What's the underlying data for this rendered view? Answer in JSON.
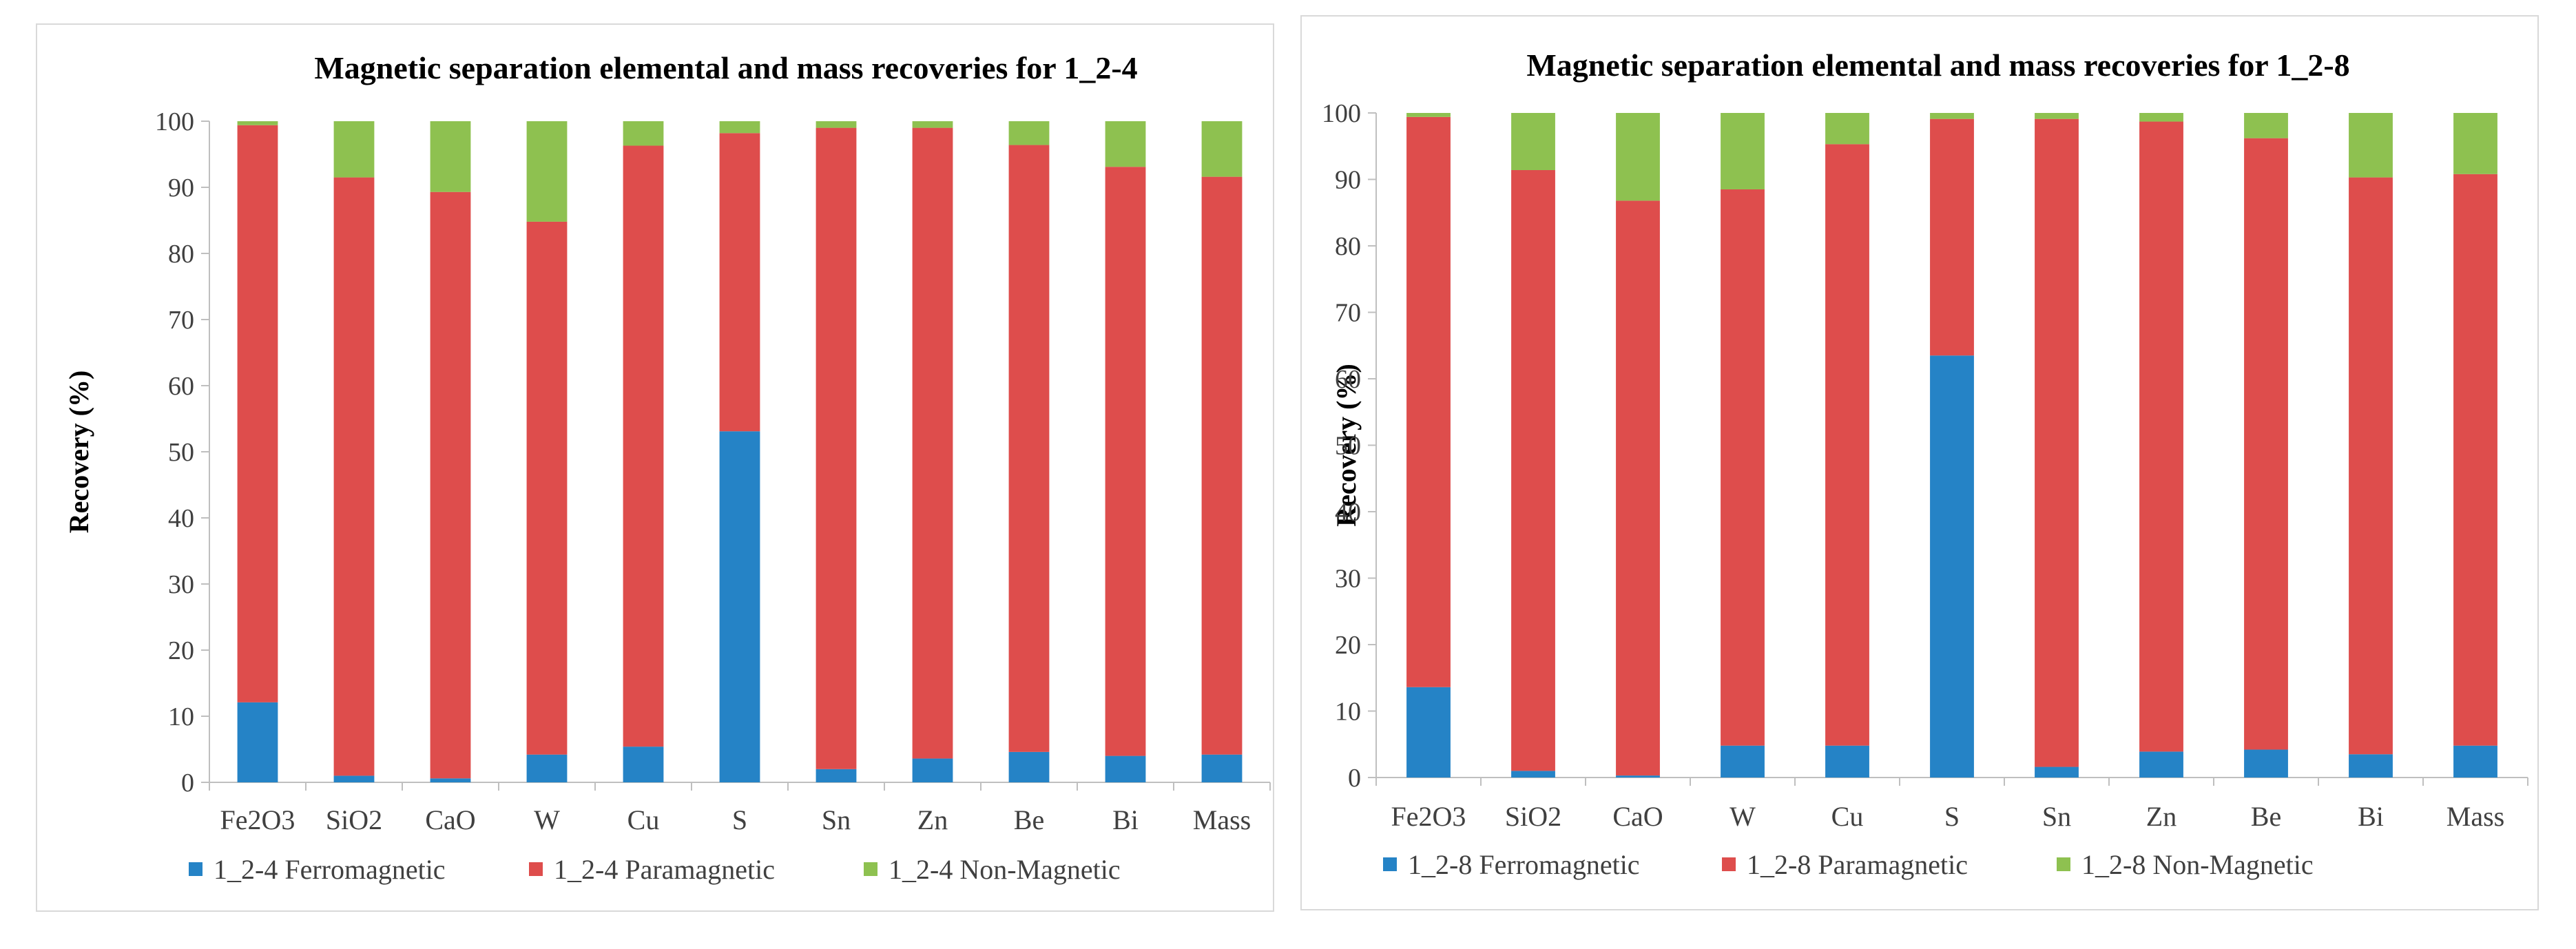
{
  "chart_data": [
    {
      "type": "bar",
      "stacked": true,
      "title": "Magnetic separation elemental and mass recoveries for 1_2-4",
      "xlabel": "",
      "ylabel": "Recovery (%)",
      "ylim": [
        0,
        100
      ],
      "yticks": [
        0,
        10,
        20,
        30,
        40,
        50,
        60,
        70,
        80,
        90,
        100
      ],
      "grid": false,
      "legend_position": "bottom",
      "categories": [
        "Fe2O3",
        "SiO2",
        "CaO",
        "W",
        "Cu",
        "S",
        "Sn",
        "Zn",
        "Be",
        "Bi",
        "Mass"
      ],
      "series": [
        {
          "name": "1_2-4 Ferromagnetic",
          "color": "#2583c6",
          "values": [
            12.1,
            1.0,
            0.6,
            4.2,
            5.4,
            53.1,
            2.0,
            3.6,
            4.6,
            4.0,
            4.2
          ]
        },
        {
          "name": "1_2-4 Paramagnetic",
          "color": "#de4d4c",
          "values": [
            87.3,
            90.5,
            88.7,
            80.6,
            90.9,
            45.1,
            97.0,
            95.4,
            91.8,
            89.1,
            87.4
          ]
        },
        {
          "name": "1_2-4 Non-Magnetic",
          "color": "#8ec150",
          "values": [
            0.6,
            8.5,
            10.7,
            15.2,
            3.7,
            1.8,
            1.0,
            1.0,
            3.6,
            6.9,
            8.4
          ]
        }
      ]
    },
    {
      "type": "bar",
      "stacked": true,
      "title": "Magnetic separation elemental and mass recoveries for 1_2-8",
      "xlabel": "",
      "ylabel": "Recovery (%)",
      "ylim": [
        0,
        100
      ],
      "yticks": [
        0,
        10,
        20,
        30,
        40,
        50,
        60,
        70,
        80,
        90,
        100
      ],
      "grid": false,
      "legend_position": "bottom",
      "categories": [
        "Fe2O3",
        "SiO2",
        "CaO",
        "W",
        "Cu",
        "S",
        "Sn",
        "Zn",
        "Be",
        "Bi",
        "Mass"
      ],
      "series": [
        {
          "name": "1_2-8 Ferromagnetic",
          "color": "#2583c6",
          "values": [
            13.6,
            1.0,
            0.3,
            4.8,
            4.8,
            63.5,
            1.6,
            3.9,
            4.2,
            3.5,
            4.8
          ]
        },
        {
          "name": "1_2-8 Paramagnetic",
          "color": "#de4d4c",
          "values": [
            85.8,
            90.4,
            86.5,
            83.7,
            90.5,
            35.6,
            97.5,
            94.8,
            92.0,
            86.8,
            86.0
          ]
        },
        {
          "name": "1_2-8 Non-Magnetic",
          "color": "#8ec150",
          "values": [
            0.6,
            8.6,
            13.2,
            11.5,
            4.7,
            0.9,
            0.9,
            1.3,
            3.8,
            9.7,
            9.2
          ]
        }
      ]
    }
  ]
}
